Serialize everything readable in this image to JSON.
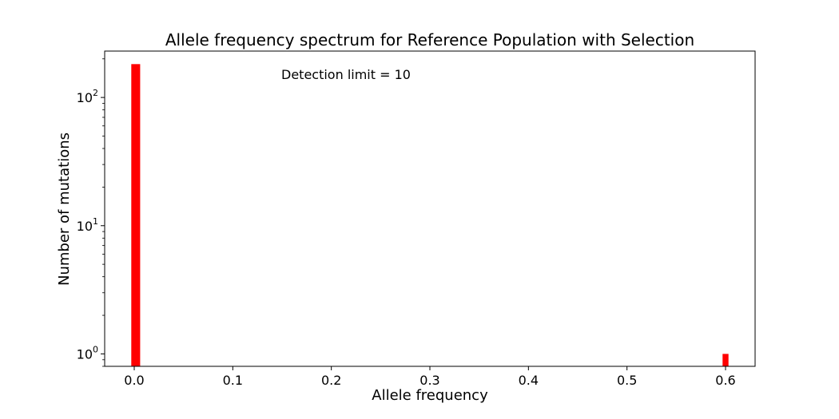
{
  "chart_data": {
    "type": "bar",
    "title": "Allele frequency spectrum for Reference Population with Selection",
    "xlabel": "Allele frequency",
    "ylabel": "Number of mutations",
    "yscale": "log",
    "xlim": [
      -0.03,
      0.63
    ],
    "ylim": [
      0.8,
      230
    ],
    "x_ticks": [
      0.0,
      0.1,
      0.2,
      0.3,
      0.4,
      0.5,
      0.6
    ],
    "x_tick_labels": [
      "0.0",
      "0.1",
      "0.2",
      "0.3",
      "0.4",
      "0.5",
      "0.6"
    ],
    "y_ticks": [
      1,
      10,
      100
    ],
    "y_tick_labels": [
      {
        "base": "10",
        "exp": "0"
      },
      {
        "base": "10",
        "exp": "1"
      },
      {
        "base": "10",
        "exp": "2"
      }
    ],
    "bars": [
      {
        "x0": -0.003,
        "x1": 0.006,
        "value": 182
      },
      {
        "x0": 0.597,
        "x1": 0.603,
        "value": 1
      }
    ],
    "bar_color": "#ff0000",
    "grid": false,
    "annotation": "Detection limit = 10"
  }
}
